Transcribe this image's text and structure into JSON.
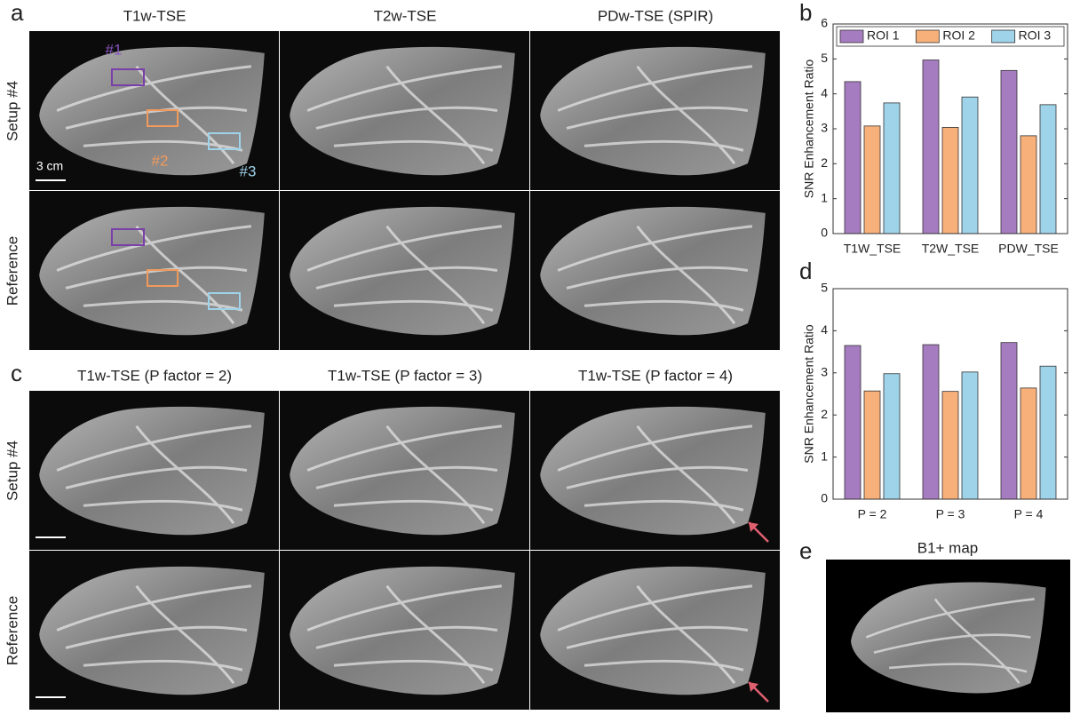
{
  "panels": {
    "a": "a",
    "b": "b",
    "c": "c",
    "d": "d",
    "e": "e"
  },
  "figure_a": {
    "columns": [
      "T1w-TSE",
      "T2w-TSE",
      "PDw-TSE (SPIR)"
    ],
    "rows": [
      "Setup #4",
      "Reference"
    ],
    "roi_labels": [
      "#1",
      "#2",
      "#3"
    ],
    "scale_bar": "3 cm"
  },
  "figure_c": {
    "columns": [
      "T1w-TSE (P factor = 2)",
      "T1w-TSE (P factor = 3)",
      "T1w-TSE (P factor = 4)"
    ],
    "rows": [
      "Setup #4",
      "Reference"
    ]
  },
  "figure_e": {
    "title": "B1+ map"
  },
  "chart_data": [
    {
      "type": "bar",
      "ylabel": "SNR Enhancement Ratio",
      "categories": [
        "T1W_TSE",
        "T2W_TSE",
        "PDW_TSE"
      ],
      "series": [
        {
          "name": "ROI 1",
          "color": "#a67cc0",
          "values": [
            4.35,
            4.97,
            4.67
          ]
        },
        {
          "name": "ROI 2",
          "color": "#f8b07a",
          "values": [
            3.08,
            3.04,
            2.8
          ]
        },
        {
          "name": "ROI 3",
          "color": "#9fd3ea",
          "values": [
            3.74,
            3.91,
            3.69
          ]
        }
      ],
      "ylim": [
        0,
        6
      ],
      "yticks": [
        0,
        1,
        2,
        3,
        4,
        5,
        6
      ],
      "legend": "top"
    },
    {
      "type": "bar",
      "ylabel": "SNR Enhancement Ratio",
      "categories": [
        "P = 2",
        "P = 3",
        "P = 4"
      ],
      "series": [
        {
          "color": "#a67cc0",
          "values": [
            3.65,
            3.67,
            3.72
          ]
        },
        {
          "color": "#f8b07a",
          "values": [
            2.57,
            2.56,
            2.64
          ]
        },
        {
          "color": "#9fd3ea",
          "values": [
            2.98,
            3.02,
            3.16
          ]
        }
      ],
      "ylim": [
        0,
        5
      ],
      "yticks": [
        0,
        1,
        2,
        3,
        4,
        5
      ]
    }
  ]
}
